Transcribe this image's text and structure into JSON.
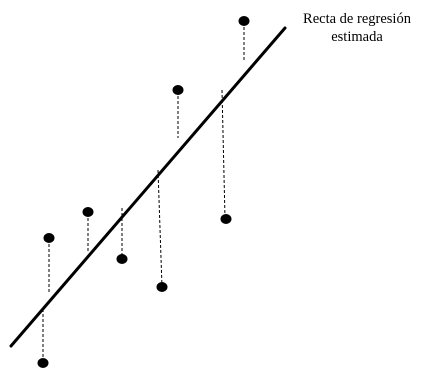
{
  "diagram": {
    "line_label": {
      "line1": "Recta de regresión",
      "line2": "estimada"
    },
    "colors": {
      "ink": "#000000",
      "background": "#ffffff"
    }
  }
}
